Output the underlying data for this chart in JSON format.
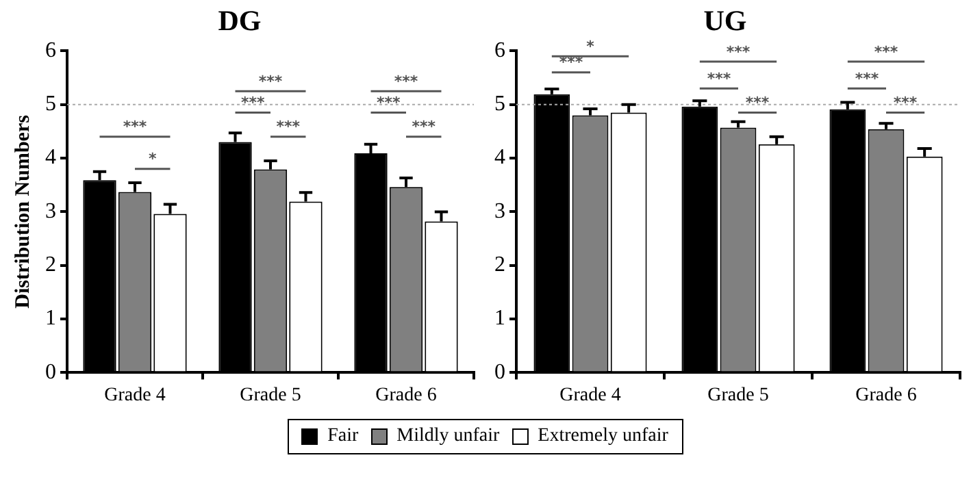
{
  "chart_data": [
    {
      "type": "bar",
      "title": "DG",
      "ylabel": "Distribution Numbers",
      "categories": [
        "Grade 4",
        "Grade 5",
        "Grade 6"
      ],
      "series": [
        {
          "name": "Fair",
          "color": "#000000",
          "values": [
            3.59,
            4.3,
            4.09
          ],
          "errors": [
            0.16,
            0.17,
            0.17
          ]
        },
        {
          "name": "Mildly unfair",
          "color": "#808080",
          "values": [
            3.37,
            3.79,
            3.46
          ],
          "errors": [
            0.17,
            0.16,
            0.17
          ]
        },
        {
          "name": "Extremely unfair",
          "color": "#ffffff",
          "values": [
            2.96,
            3.19,
            2.82
          ],
          "errors": [
            0.18,
            0.17,
            0.18
          ]
        }
      ],
      "ylim": [
        0,
        6
      ],
      "yticks": [
        0,
        1,
        2,
        3,
        4,
        5,
        6
      ],
      "grid": false,
      "legend": "bottom",
      "ref_lines": [
        {
          "axis": "y",
          "value": 5,
          "color": "#aaaaaa",
          "line_style": "dotted"
        }
      ],
      "annotations": [
        "***",
        "*",
        "***",
        "***",
        "***",
        "***",
        "***",
        "***"
      ]
    },
    {
      "type": "bar",
      "title": "UG",
      "categories": [
        "Grade 4",
        "Grade 5",
        "Grade 6"
      ],
      "series": [
        {
          "color": "#000000",
          "values": [
            5.19,
            4.96,
            4.91
          ],
          "errors": [
            0.1,
            0.11,
            0.13
          ]
        },
        {
          "color": "#808080",
          "values": [
            4.8,
            4.57,
            4.54
          ],
          "errors": [
            0.12,
            0.11,
            0.11
          ]
        },
        {
          "color": "#ffffff",
          "values": [
            4.85,
            4.26,
            4.03
          ],
          "errors": [
            0.15,
            0.14,
            0.15
          ]
        }
      ],
      "ylim": [
        0,
        6
      ],
      "yticks": [
        0,
        1,
        2,
        3,
        4,
        5,
        6
      ],
      "grid": false,
      "ref_lines": [
        {
          "axis": "y",
          "value": 5,
          "color": "#aaaaaa",
          "line_style": "dotted"
        }
      ],
      "annotations": [
        "*",
        "***",
        "***",
        "***",
        "***",
        "***",
        "***",
        "***"
      ]
    }
  ]
}
